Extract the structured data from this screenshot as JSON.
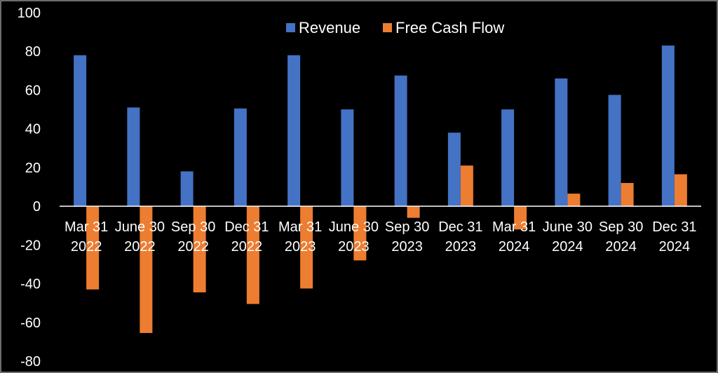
{
  "chart_data": {
    "type": "bar",
    "categories": [
      [
        "Mar 31",
        "2022"
      ],
      [
        "June 30",
        "2022"
      ],
      [
        "Sep 30",
        "2022"
      ],
      [
        "Dec 31",
        "2022"
      ],
      [
        "Mar 31",
        "2023"
      ],
      [
        "June 30",
        "2023"
      ],
      [
        "Sep 30",
        "2023"
      ],
      [
        "Dec 31",
        "2023"
      ],
      [
        "Mar 31",
        "2024"
      ],
      [
        "June 30",
        "2024"
      ],
      [
        "Sep 30",
        "2024"
      ],
      [
        "Dec 31",
        "2024"
      ]
    ],
    "series": [
      {
        "name": "Revenue",
        "color": "#4472c4",
        "values": [
          78,
          51,
          18,
          50.5,
          78,
          50,
          67.5,
          38,
          50,
          66,
          57.5,
          83
        ]
      },
      {
        "name": "Free Cash Flow",
        "color": "#ed7d31",
        "values": [
          -43,
          -65.5,
          -44.5,
          -50.5,
          -42.5,
          -28,
          -6,
          21,
          -12,
          6.5,
          12,
          16.5
        ]
      }
    ],
    "ylim": [
      -80,
      100
    ],
    "yticks": [
      100,
      80,
      60,
      40,
      20,
      0,
      -20,
      -40,
      -60,
      -80
    ],
    "grid": false,
    "legend_position": "top-center",
    "title": "",
    "xlabel": "",
    "ylabel": ""
  },
  "colors": {
    "background": "#000000",
    "axis": "#ffffff",
    "text": "#ffffff"
  }
}
